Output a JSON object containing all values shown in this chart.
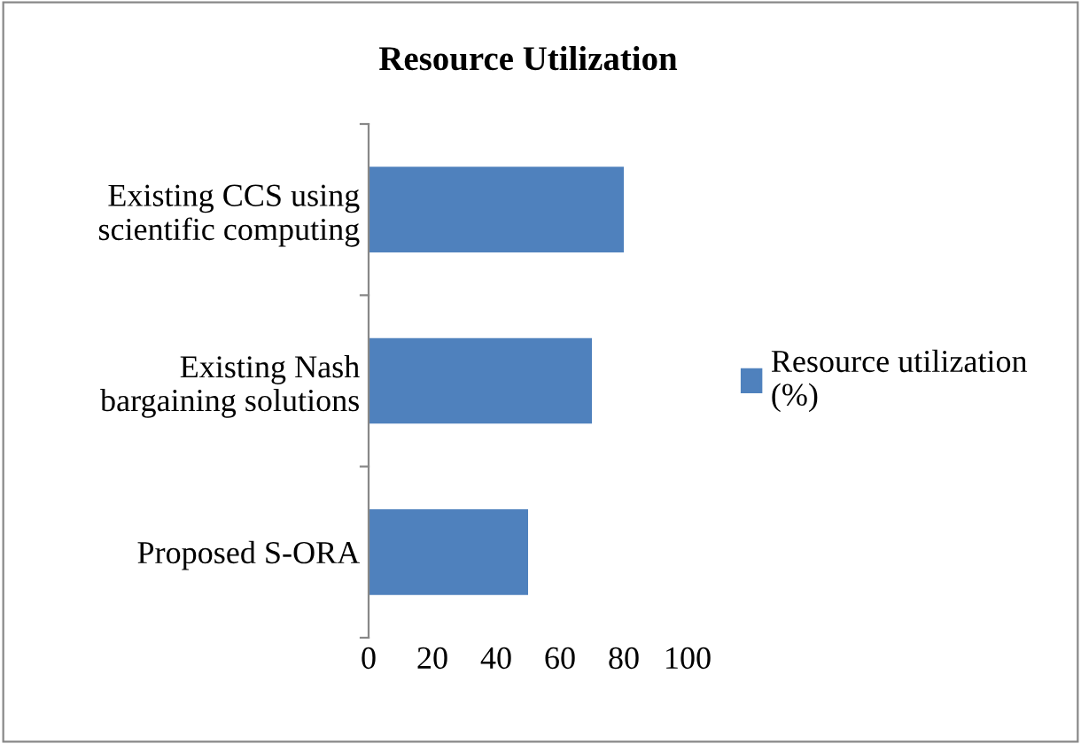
{
  "chart_data": {
    "type": "bar",
    "orientation": "horizontal",
    "title": "Resource Utilization",
    "categories": [
      "Existing CCS using\nscientific computing",
      "Existing Nash\nbargaining solutions",
      "Proposed S-ORA"
    ],
    "series": [
      {
        "name": "Resource utilization\n(%)",
        "color": "#4f81bd",
        "values": [
          80,
          70,
          50
        ]
      }
    ],
    "xlim": [
      0,
      100
    ],
    "xticks": [
      0,
      20,
      40,
      60,
      80,
      100
    ],
    "grid": false,
    "legend": "right"
  }
}
